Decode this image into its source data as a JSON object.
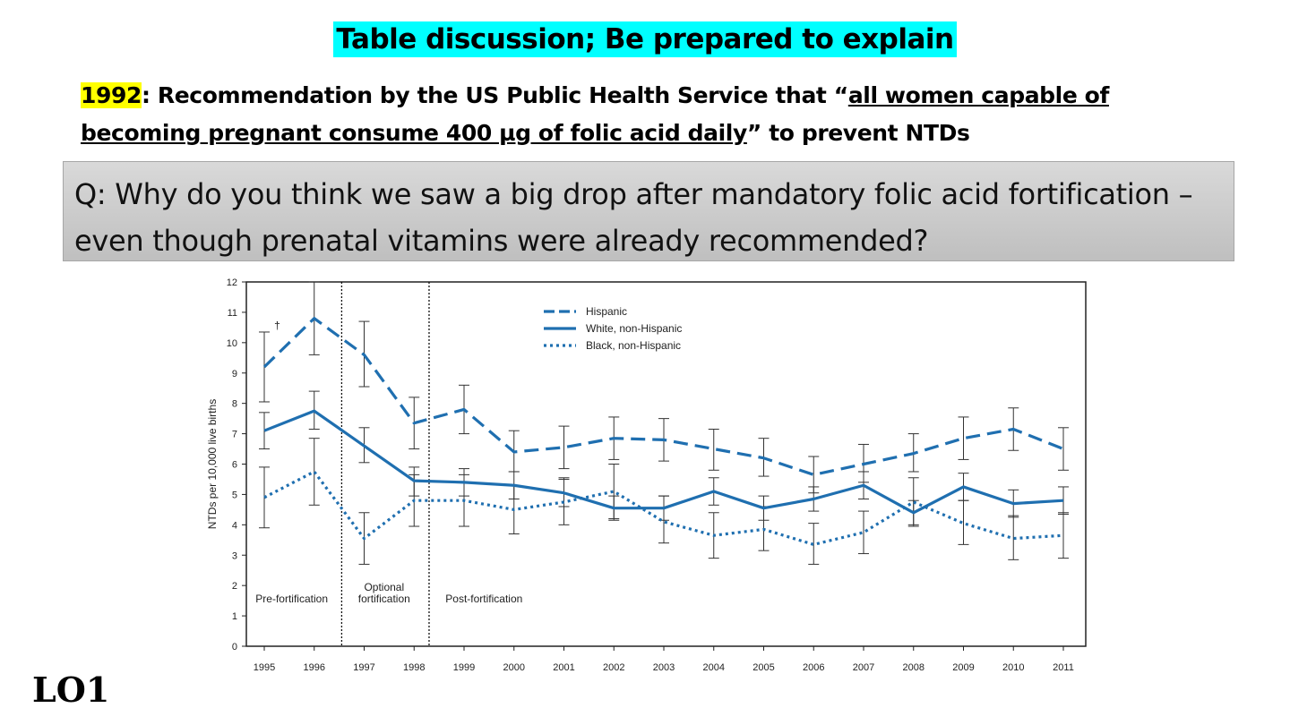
{
  "title": "Table discussion; Be prepared to explain",
  "recommendation": {
    "year": "1992",
    "part1": ": Recommendation by the US Public Health Service that “",
    "quote": "all women capable of becoming pregnant consume 400 µg of folic acid daily",
    "part2": "” to prevent NTDs"
  },
  "question": "Q: Why do you think we saw a big drop after mandatory folic acid fortification – even though prenatal vitamins were already recommended?",
  "footer_label": "LO1",
  "chart_data": {
    "type": "line",
    "ylabel": "NTDs per 10,000 live births",
    "xlabel": "",
    "x": [
      1995,
      1996,
      1997,
      1998,
      1999,
      2000,
      2001,
      2002,
      2003,
      2004,
      2005,
      2006,
      2007,
      2008,
      2009,
      2010,
      2011
    ],
    "ylim": [
      0,
      12
    ],
    "yticks": [
      0,
      1,
      2,
      3,
      4,
      5,
      6,
      7,
      8,
      9,
      10,
      11,
      12
    ],
    "legend_position": "top-center",
    "series": [
      {
        "name": "Hispanic",
        "style": "dashed",
        "color": "#1f6fb0",
        "values": [
          9.2,
          10.8,
          9.6,
          7.35,
          7.8,
          6.4,
          6.55,
          6.85,
          6.8,
          6.5,
          6.2,
          5.65,
          6.0,
          6.35,
          6.85,
          7.15,
          6.5
        ],
        "low": [
          8.05,
          9.6,
          8.55,
          6.5,
          7.0,
          5.75,
          5.85,
          6.15,
          6.1,
          5.8,
          5.6,
          5.05,
          5.4,
          5.75,
          6.15,
          6.45,
          5.8
        ],
        "high": [
          10.35,
          12.0,
          10.7,
          8.2,
          8.6,
          7.1,
          7.25,
          7.55,
          7.5,
          7.15,
          6.85,
          6.25,
          6.65,
          7.0,
          7.55,
          7.85,
          7.2
        ]
      },
      {
        "name": "White, non-Hispanic",
        "style": "solid",
        "color": "#1f6fb0",
        "values": [
          7.1,
          7.75,
          6.6,
          5.45,
          5.4,
          5.3,
          5.05,
          4.55,
          4.55,
          5.1,
          4.55,
          4.85,
          5.3,
          4.4,
          5.25,
          4.7,
          4.8
        ],
        "low": [
          6.5,
          7.15,
          6.05,
          4.95,
          4.95,
          4.85,
          4.6,
          4.15,
          4.15,
          4.65,
          4.15,
          4.45,
          4.85,
          4.0,
          4.8,
          4.25,
          4.35
        ],
        "high": [
          7.7,
          8.4,
          7.2,
          5.9,
          5.85,
          5.75,
          5.5,
          4.95,
          4.95,
          5.55,
          4.95,
          5.25,
          5.75,
          4.8,
          5.7,
          5.15,
          5.25
        ]
      },
      {
        "name": "Black, non-Hispanic",
        "style": "dotted",
        "color": "#1f6fb0",
        "values": [
          4.9,
          5.75,
          3.55,
          4.8,
          4.8,
          4.5,
          4.75,
          5.1,
          4.1,
          3.65,
          3.85,
          3.35,
          3.75,
          4.75,
          4.05,
          3.55,
          3.65
        ],
        "low": [
          3.9,
          4.65,
          2.7,
          3.95,
          3.95,
          3.7,
          4.0,
          4.2,
          3.4,
          2.9,
          3.15,
          2.7,
          3.05,
          3.95,
          3.35,
          2.85,
          2.9
        ],
        "high": [
          5.9,
          6.85,
          4.4,
          5.65,
          5.65,
          5.3,
          5.55,
          6.0,
          4.95,
          4.4,
          4.6,
          4.05,
          4.45,
          5.55,
          4.8,
          4.3,
          4.4
        ]
      }
    ],
    "period_dividers": [
      1996.55,
      1998.3
    ],
    "period_labels": [
      {
        "text": [
          "Pre-fortification"
        ],
        "x": 1995.55
      },
      {
        "text": [
          "Optional",
          "fortification"
        ],
        "x": 1997.4
      },
      {
        "text": [
          "Post-fortification"
        ],
        "x": 1999.4
      }
    ],
    "annotations": [
      {
        "text": "†",
        "x": 1995.2,
        "y": 10.45
      }
    ]
  }
}
